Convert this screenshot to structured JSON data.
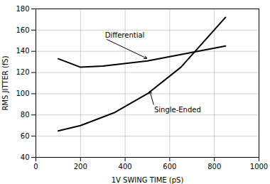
{
  "chart_data": {
    "type": "line",
    "xlabel": "1V SWING TIME (pS)",
    "ylabel": "RMS JITTER (fS)",
    "series": [
      {
        "x": [
          100,
          200,
          300,
          500,
          850
        ],
        "values": [
          133,
          125,
          126,
          131,
          145
        ],
        "color": "#000000"
      },
      {
        "x": [
          100,
          200,
          350,
          500,
          650,
          850
        ],
        "values": [
          65,
          70,
          82,
          100,
          125,
          172
        ],
        "color": "#000000"
      }
    ],
    "xlim": [
      0,
      1000
    ],
    "ylim": [
      40,
      180
    ],
    "xticks": [
      0,
      200,
      400,
      600,
      800,
      1000
    ],
    "yticks": [
      40,
      60,
      80,
      100,
      120,
      140,
      160,
      180
    ],
    "grid": true,
    "annotations": [
      {
        "text": "Differential",
        "x": 500,
        "y": 133,
        "text_x": 310,
        "text_y": 152
      },
      {
        "text": "Single-Ended",
        "x": 510,
        "y": 103,
        "text_x": 530,
        "text_y": 88
      }
    ]
  }
}
